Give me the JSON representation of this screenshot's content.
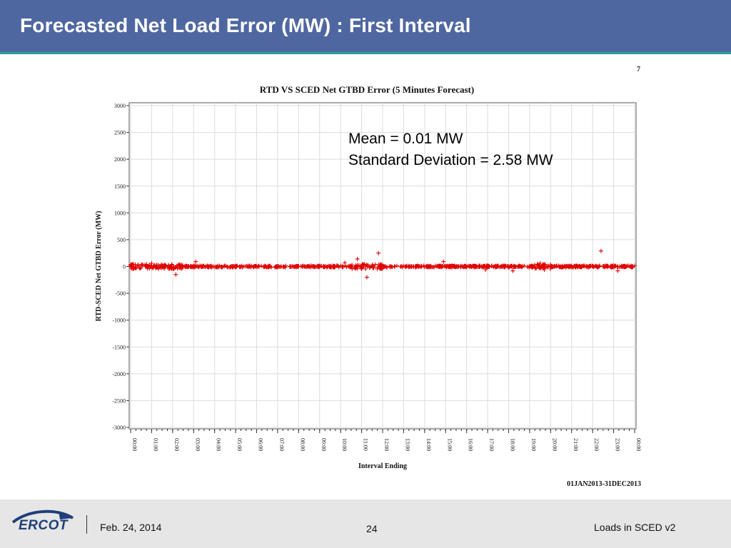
{
  "slide": {
    "title": "Forecasted Net Load Error (MW) : First Interval",
    "corner_page_label": "7"
  },
  "footer": {
    "logo_text": "ERCOT",
    "date": "Feb. 24, 2014",
    "page_number": "24",
    "deck_title": "Loads in SCED v2"
  },
  "annotation": {
    "mean": "Mean = 0.01 MW",
    "std": "Standard Deviation = 2.58 MW"
  },
  "chart_data": {
    "type": "scatter",
    "title": "RTD VS SCED Net GTBD Error (5 Minutes Forecast)",
    "xlabel": "Interval Ending",
    "ylabel": "RTD-SCED Net GTBD Error (MW)",
    "footnote": "01JAN2013-31DEC2013",
    "ylim": [
      -3000,
      3000
    ],
    "y_ticks": [
      3000,
      2500,
      2000,
      1500,
      1000,
      500,
      0,
      -500,
      -1000,
      -1500,
      -2000,
      -2500,
      -3000
    ],
    "x_ticks": [
      "00:00",
      "01:00",
      "02:00",
      "03:00",
      "04:00",
      "05:00",
      "06:00",
      "07:00",
      "08:00",
      "09:00",
      "10:00",
      "11:00",
      "12:00",
      "13:00",
      "14:00",
      "15:00",
      "16:00",
      "17:00",
      "18:00",
      "19:00",
      "20:00",
      "21:00",
      "22:00",
      "23:00",
      "00:00"
    ],
    "grid": true,
    "marker": "plus",
    "series_color": "#e00000",
    "outliers": [
      {
        "x": 0.1,
        "y": 40
      },
      {
        "x": 1.0,
        "y": 60
      },
      {
        "x": 2.15,
        "y": -150
      },
      {
        "x": 3.1,
        "y": 90
      },
      {
        "x": 10.2,
        "y": 70
      },
      {
        "x": 10.8,
        "y": 140
      },
      {
        "x": 11.25,
        "y": -200
      },
      {
        "x": 11.8,
        "y": 250
      },
      {
        "x": 14.9,
        "y": 90
      },
      {
        "x": 16.9,
        "y": -60
      },
      {
        "x": 18.2,
        "y": -80
      },
      {
        "x": 19.5,
        "y": 60
      },
      {
        "x": 19.7,
        "y": -60
      },
      {
        "x": 22.4,
        "y": 290
      },
      {
        "x": 23.2,
        "y": -80
      }
    ]
  }
}
